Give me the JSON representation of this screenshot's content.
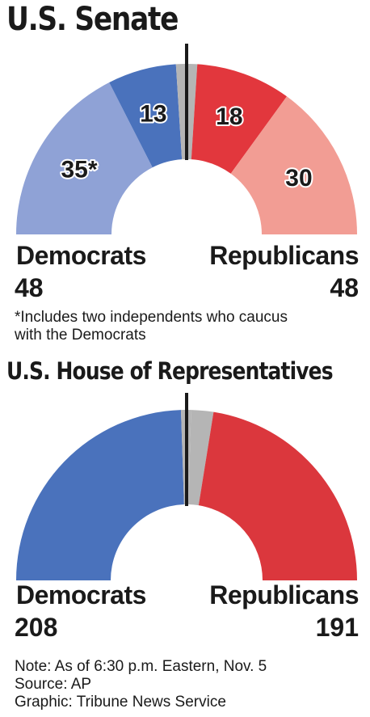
{
  "chart_data": [
    {
      "type": "pie",
      "title": "U.S. Senate",
      "slices": [
        {
          "label": "35*",
          "value": 35,
          "color": "#8fa2d6"
        },
        {
          "label": "13",
          "value": 13,
          "color": "#4a72bc"
        },
        {
          "label": "",
          "value": 2,
          "color": "#b5b5b5"
        },
        {
          "label": "",
          "value": 2,
          "color": "#b5b5b5"
        },
        {
          "label": "18",
          "value": 18,
          "color": "#e2373d"
        },
        {
          "label": "30",
          "value": 30,
          "color": "#f29d94"
        }
      ],
      "parties": {
        "left": {
          "name": "Democrats",
          "total": "48"
        },
        "right": {
          "name": "Republicans",
          "total": "48"
        }
      },
      "footnote_lines": [
        "*Includes two independents who caucus",
        "with the Democrats"
      ]
    },
    {
      "type": "pie",
      "title": "U.S. House of Representatives",
      "slices": [
        {
          "label": "",
          "value": 208,
          "color": "#4a72bc"
        },
        {
          "label": "",
          "value": 8,
          "color": "#b5b5b5"
        },
        {
          "label": "",
          "value": 18,
          "color": "#b5b5b5"
        },
        {
          "label": "",
          "value": 191,
          "color": "#db373d"
        }
      ],
      "parties": {
        "left": {
          "name": "Democrats",
          "total": "208"
        },
        "right": {
          "name": "Republicans",
          "total": "191"
        }
      }
    }
  ],
  "footer": {
    "note": "Note: As of 6:30 p.m. Eastern, Nov. 5",
    "source": "Source: AP",
    "graphic": "Graphic: Tribune News Service"
  },
  "colors": {
    "divider": "#1a1a1a",
    "label_outline": "#ffffff"
  }
}
